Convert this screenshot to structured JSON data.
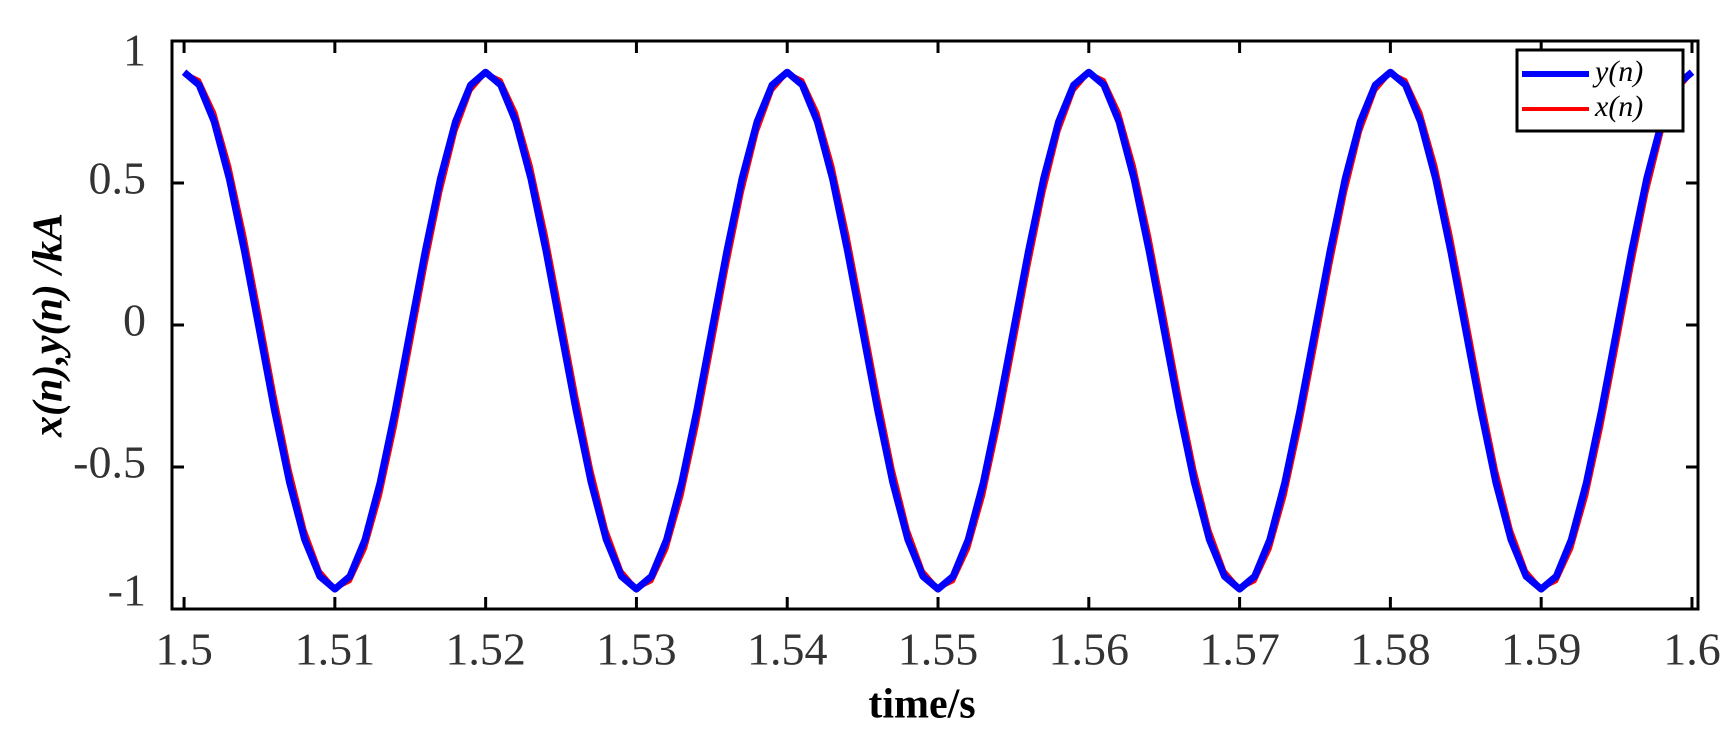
{
  "chart_data": {
    "type": "line",
    "xlabel": "time/s",
    "ylabel": "x(n),y(n) /kA",
    "x": [
      1.5,
      1.501,
      1.502,
      1.503,
      1.504,
      1.505,
      1.506,
      1.507,
      1.508,
      1.509,
      1.51,
      1.511,
      1.512,
      1.513,
      1.514,
      1.515,
      1.516,
      1.517,
      1.518,
      1.519,
      1.52,
      1.521,
      1.522,
      1.523,
      1.524,
      1.525,
      1.526,
      1.527,
      1.528,
      1.529,
      1.53,
      1.531,
      1.532,
      1.533,
      1.534,
      1.535,
      1.536,
      1.537,
      1.538,
      1.539,
      1.54,
      1.541,
      1.542,
      1.543,
      1.544,
      1.545,
      1.546,
      1.547,
      1.548,
      1.549,
      1.55,
      1.551,
      1.552,
      1.553,
      1.554,
      1.555,
      1.556,
      1.557,
      1.558,
      1.559,
      1.56,
      1.561,
      1.562,
      1.563,
      1.564,
      1.565,
      1.566,
      1.567,
      1.568,
      1.569,
      1.57,
      1.571,
      1.572,
      1.573,
      1.574,
      1.575,
      1.576,
      1.577,
      1.578,
      1.579,
      1.58,
      1.581,
      1.582,
      1.583,
      1.584,
      1.585,
      1.586,
      1.587,
      1.588,
      1.589,
      1.59,
      1.591,
      1.592,
      1.593,
      1.594,
      1.595,
      1.596,
      1.597,
      1.598,
      1.599,
      1.6
    ],
    "series": [
      {
        "name": "y(n)",
        "color": "#0000ff",
        "values": [
          0.89,
          0.845,
          0.716,
          0.515,
          0.261,
          -0.02,
          -0.301,
          -0.555,
          -0.756,
          -0.885,
          -0.93,
          -0.885,
          -0.756,
          -0.555,
          -0.301,
          -0.02,
          0.261,
          0.515,
          0.716,
          0.845,
          0.89,
          0.845,
          0.716,
          0.515,
          0.261,
          -0.02,
          -0.301,
          -0.555,
          -0.756,
          -0.885,
          -0.93,
          -0.885,
          -0.756,
          -0.555,
          -0.301,
          -0.02,
          0.261,
          0.515,
          0.716,
          0.845,
          0.89,
          0.845,
          0.716,
          0.515,
          0.261,
          -0.02,
          -0.301,
          -0.555,
          -0.756,
          -0.885,
          -0.93,
          -0.885,
          -0.756,
          -0.555,
          -0.301,
          -0.02,
          0.261,
          0.515,
          0.716,
          0.845,
          0.89,
          0.845,
          0.716,
          0.515,
          0.261,
          -0.02,
          -0.301,
          -0.555,
          -0.756,
          -0.885,
          -0.93,
          -0.885,
          -0.756,
          -0.555,
          -0.301,
          -0.02,
          0.261,
          0.515,
          0.716,
          0.845,
          0.89,
          0.845,
          0.716,
          0.515,
          0.261,
          -0.02,
          -0.301,
          -0.555,
          -0.756,
          -0.885,
          -0.93,
          -0.885,
          -0.756,
          -0.555,
          -0.301,
          -0.02,
          0.261,
          0.515,
          0.716,
          0.845,
          0.89
        ]
      },
      {
        "name": "x(n)",
        "color": "#ff0000",
        "values": [
          0.888,
          0.862,
          0.748,
          0.56,
          0.315,
          0.037,
          -0.247,
          -0.508,
          -0.722,
          -0.866,
          -0.928,
          -0.902,
          -0.788,
          -0.6,
          -0.355,
          -0.077,
          0.207,
          0.468,
          0.682,
          0.826,
          0.888,
          0.862,
          0.748,
          0.56,
          0.315,
          0.037,
          -0.247,
          -0.508,
          -0.722,
          -0.866,
          -0.928,
          -0.902,
          -0.788,
          -0.6,
          -0.355,
          -0.077,
          0.207,
          0.468,
          0.682,
          0.826,
          0.888,
          0.862,
          0.748,
          0.56,
          0.315,
          0.037,
          -0.247,
          -0.508,
          -0.722,
          -0.866,
          -0.928,
          -0.902,
          -0.788,
          -0.6,
          -0.355,
          -0.077,
          0.207,
          0.468,
          0.682,
          0.826,
          0.888,
          0.862,
          0.748,
          0.56,
          0.315,
          0.037,
          -0.247,
          -0.508,
          -0.722,
          -0.866,
          -0.928,
          -0.902,
          -0.788,
          -0.6,
          -0.355,
          -0.077,
          0.207,
          0.468,
          0.682,
          0.826,
          0.888,
          0.862,
          0.748,
          0.56,
          0.315,
          0.037,
          -0.247,
          -0.508,
          -0.722,
          -0.866,
          -0.928,
          -0.902,
          -0.788,
          -0.6,
          -0.355,
          -0.077,
          0.207,
          0.468,
          0.682,
          0.826,
          0.888
        ]
      }
    ],
    "xlim": [
      1.4992,
      1.6004
    ],
    "ylim": [
      -1,
      1
    ],
    "xticks": [
      1.5,
      1.51,
      1.52,
      1.53,
      1.54,
      1.55,
      1.56,
      1.57,
      1.58,
      1.59,
      1.6
    ],
    "yticks": [
      -1,
      -0.5,
      0,
      0.5,
      1
    ],
    "legend": "upper right"
  }
}
